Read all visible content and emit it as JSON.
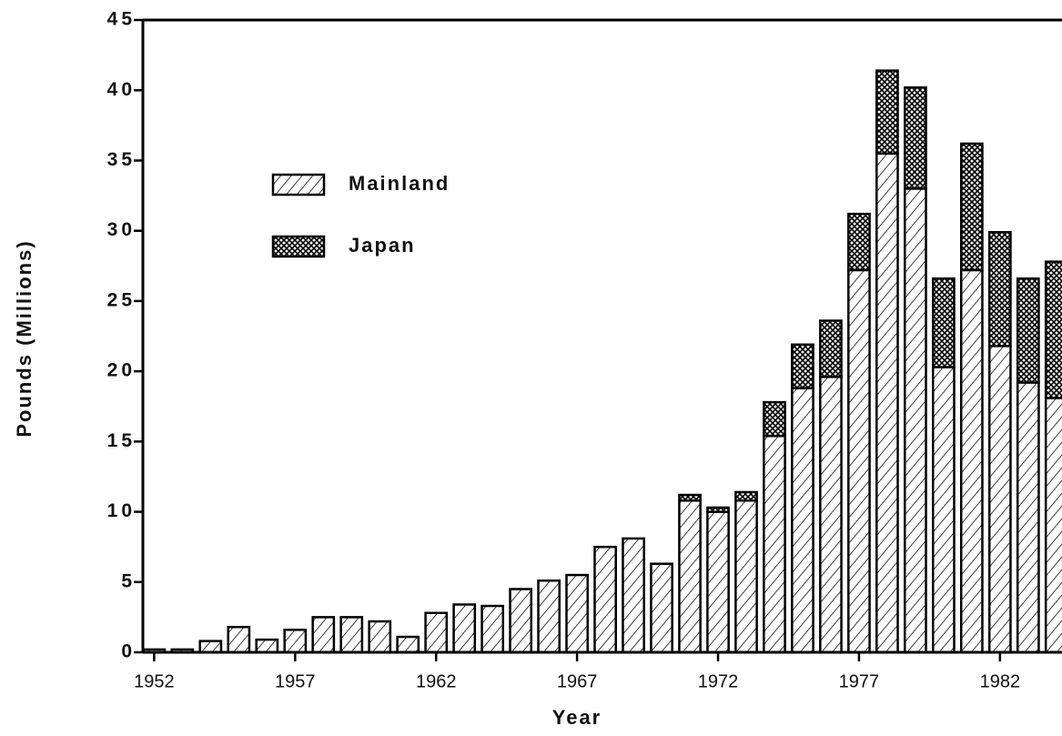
{
  "chart_data": {
    "type": "stacked-bar",
    "x": [
      1952,
      1953,
      1954,
      1955,
      1956,
      1957,
      1958,
      1959,
      1960,
      1961,
      1962,
      1963,
      1964,
      1965,
      1966,
      1967,
      1968,
      1969,
      1970,
      1971,
      1972,
      1973,
      1974,
      1975,
      1976,
      1977,
      1978,
      1979,
      1980,
      1981,
      1982,
      1983,
      1984
    ],
    "series": [
      {
        "name": "Mainland",
        "color": "#000000",
        "pattern": "hatch",
        "values": [
          0.2,
          0.2,
          0.8,
          1.8,
          0.9,
          1.6,
          2.5,
          2.5,
          2.2,
          1.1,
          2.8,
          3.4,
          3.3,
          4.5,
          5.1,
          5.5,
          7.5,
          8.1,
          6.3,
          10.8,
          10.0,
          10.8,
          15.4,
          18.8,
          19.6,
          27.2,
          35.5,
          33.0,
          20.3,
          27.2,
          21.8,
          19.2,
          18.1
        ]
      },
      {
        "name": "Japan",
        "color": "#000000",
        "pattern": "crosshatch",
        "values": [
          0,
          0,
          0,
          0,
          0,
          0,
          0,
          0,
          0,
          0,
          0,
          0,
          0,
          0,
          0,
          0,
          0,
          0,
          0,
          0.4,
          0.3,
          0.6,
          2.4,
          3.1,
          4.0,
          4.0,
          5.9,
          7.2,
          6.3,
          9.0,
          8.1,
          7.4,
          9.7
        ]
      }
    ],
    "xlabel": "Year",
    "ylabel": "Pounds  (Millions)",
    "xlim": [
      1951.6,
      1984.2
    ],
    "xticks": [
      1952,
      1957,
      1962,
      1967,
      1972,
      1977,
      1982
    ],
    "ylim": [
      0,
      45
    ],
    "yticks": [
      0,
      5,
      10,
      15,
      20,
      25,
      30,
      35,
      40,
      45
    ],
    "legend": "upper left"
  }
}
